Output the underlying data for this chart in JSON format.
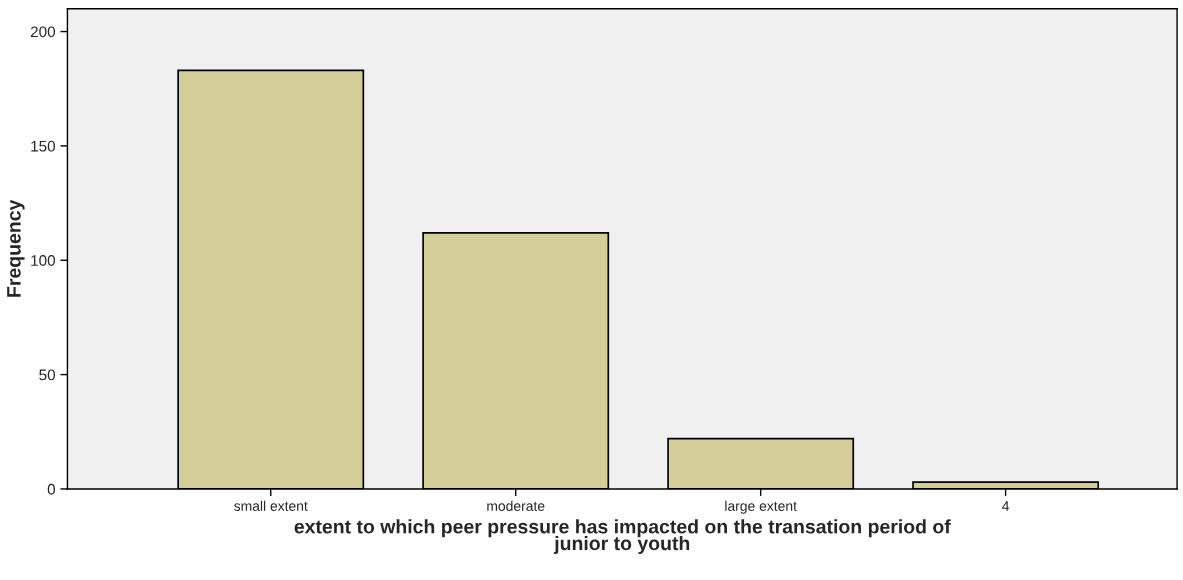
{
  "chart_data": {
    "type": "bar",
    "categories": [
      "small extent",
      "moderate",
      "large extent",
      "4"
    ],
    "values": [
      183,
      112,
      22,
      3
    ],
    "color": "#d3ce97",
    "xlabel": "extent to which peer pressure has impacted on the transation period of\njunior to youth",
    "ylabel": "Frequency",
    "ylim": [
      0,
      210
    ],
    "yticks": [
      0,
      50,
      100,
      150,
      200
    ],
    "grid": false
  }
}
